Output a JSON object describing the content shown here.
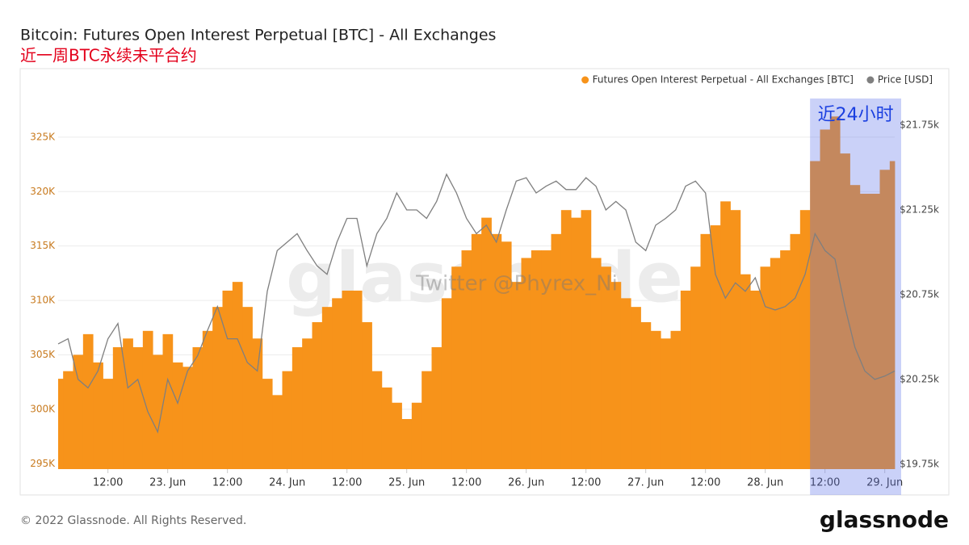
{
  "chart_data": {
    "type": "combo",
    "title": "Bitcoin: Futures Open Interest Perpetual [BTC] - All Exchanges",
    "subtitle": "近一周BTC永续未平合约",
    "x": [
      "22 Jun 02:00",
      "22 Jun 04:00",
      "22 Jun 06:00",
      "22 Jun 08:00",
      "22 Jun 10:00",
      "22 Jun 12:00",
      "22 Jun 14:00",
      "22 Jun 16:00",
      "22 Jun 18:00",
      "22 Jun 20:00",
      "22 Jun 22:00",
      "23 Jun 00:00",
      "23 Jun 02:00",
      "23 Jun 04:00",
      "23 Jun 06:00",
      "23 Jun 08:00",
      "23 Jun 10:00",
      "23 Jun 12:00",
      "23 Jun 14:00",
      "23 Jun 16:00",
      "23 Jun 18:00",
      "23 Jun 20:00",
      "23 Jun 22:00",
      "24 Jun 00:00",
      "24 Jun 02:00",
      "24 Jun 04:00",
      "24 Jun 06:00",
      "24 Jun 08:00",
      "24 Jun 10:00",
      "24 Jun 12:00",
      "24 Jun 14:00",
      "24 Jun 16:00",
      "24 Jun 18:00",
      "24 Jun 20:00",
      "24 Jun 22:00",
      "25 Jun 00:00",
      "25 Jun 02:00",
      "25 Jun 04:00",
      "25 Jun 06:00",
      "25 Jun 08:00",
      "25 Jun 10:00",
      "25 Jun 12:00",
      "25 Jun 14:00",
      "25 Jun 16:00",
      "25 Jun 18:00",
      "25 Jun 20:00",
      "25 Jun 22:00",
      "26 Jun 00:00",
      "26 Jun 02:00",
      "26 Jun 04:00",
      "26 Jun 06:00",
      "26 Jun 08:00",
      "26 Jun 10:00",
      "26 Jun 12:00",
      "26 Jun 14:00",
      "26 Jun 16:00",
      "26 Jun 18:00",
      "26 Jun 20:00",
      "26 Jun 22:00",
      "27 Jun 00:00",
      "27 Jun 02:00",
      "27 Jun 04:00",
      "27 Jun 06:00",
      "27 Jun 08:00",
      "27 Jun 10:00",
      "27 Jun 12:00",
      "27 Jun 14:00",
      "27 Jun 16:00",
      "27 Jun 18:00",
      "27 Jun 20:00",
      "27 Jun 22:00",
      "28 Jun 00:00",
      "28 Jun 02:00",
      "28 Jun 04:00",
      "28 Jun 06:00",
      "28 Jun 08:00",
      "28 Jun 10:00",
      "28 Jun 12:00",
      "28 Jun 14:00",
      "28 Jun 16:00",
      "28 Jun 18:00",
      "28 Jun 20:00",
      "28 Jun 22:00",
      "29 Jun 00:00",
      "29 Jun 02:00"
    ],
    "series": [
      {
        "name": "Futures Open Interest Perpetual - All Exchanges [BTC]",
        "type": "bar",
        "color": "#f7931a",
        "values": [
          302800,
          303500,
          305000,
          306900,
          304300,
          302800,
          305700,
          306500,
          305700,
          307200,
          305000,
          306900,
          304300,
          303900,
          305700,
          307200,
          309400,
          310900,
          311700,
          309400,
          306500,
          302800,
          301300,
          303500,
          305700,
          306500,
          308000,
          309400,
          310200,
          310900,
          310900,
          308000,
          303500,
          302000,
          300600,
          299100,
          300600,
          303500,
          305700,
          310200,
          313100,
          314600,
          316100,
          317600,
          316100,
          315400,
          311700,
          313900,
          314600,
          314600,
          316100,
          318300,
          317600,
          318300,
          313900,
          313100,
          311700,
          310200,
          309400,
          308000,
          307200,
          306500,
          307200,
          310900,
          313100,
          316100,
          316900,
          319100,
          318300,
          312400,
          310900,
          313100,
          313900,
          314600,
          316100,
          318300,
          322800,
          325700,
          326900,
          323500,
          320600,
          319800,
          319800,
          322000,
          322800
        ]
      },
      {
        "name": "Price [USD]",
        "type": "line",
        "color": "#7f7f7f",
        "axis": "y2",
        "values": [
          20460,
          20490,
          20250,
          20200,
          20300,
          20490,
          20580,
          20200,
          20250,
          20060,
          19940,
          20250,
          20110,
          20300,
          20390,
          20540,
          20680,
          20490,
          20490,
          20350,
          20300,
          20770,
          21010,
          21060,
          21110,
          21010,
          20920,
          20870,
          21060,
          21200,
          21200,
          20920,
          21110,
          21200,
          21350,
          21250,
          21250,
          21200,
          21300,
          21460,
          21350,
          21200,
          21110,
          21160,
          21060,
          21250,
          21420,
          21440,
          21350,
          21390,
          21420,
          21370,
          21370,
          21440,
          21390,
          21250,
          21300,
          21250,
          21060,
          21010,
          21160,
          21200,
          21250,
          21390,
          21420,
          21350,
          20870,
          20730,
          20820,
          20770,
          20850,
          20680,
          20660,
          20680,
          20730,
          20870,
          21110,
          21010,
          20960,
          20680,
          20440,
          20300,
          20250,
          20270,
          20300
        ]
      }
    ],
    "xlim": [
      "22 Jun 02:00",
      "29 Jun 02:00"
    ],
    "xticks": [
      {
        "value": "22 Jun 12:00",
        "label": "12:00"
      },
      {
        "value": "23 Jun 00:00",
        "label": "23. Jun"
      },
      {
        "value": "23 Jun 12:00",
        "label": "12:00"
      },
      {
        "value": "24 Jun 00:00",
        "label": "24. Jun"
      },
      {
        "value": "24 Jun 12:00",
        "label": "12:00"
      },
      {
        "value": "25 Jun 00:00",
        "label": "25. Jun"
      },
      {
        "value": "25 Jun 12:00",
        "label": "12:00"
      },
      {
        "value": "26 Jun 00:00",
        "label": "26. Jun"
      },
      {
        "value": "26 Jun 12:00",
        "label": "12:00"
      },
      {
        "value": "27 Jun 00:00",
        "label": "27. Jun"
      },
      {
        "value": "27 Jun 12:00",
        "label": "12:00"
      },
      {
        "value": "28 Jun 00:00",
        "label": "28. Jun"
      },
      {
        "value": "28 Jun 12:00",
        "label": "12:00"
      },
      {
        "value": "29 Jun 00:00",
        "label": "29. Jun"
      }
    ],
    "ylim": [
      294500,
      328700
    ],
    "yticks": [
      {
        "value": 295000,
        "label": "295K"
      },
      {
        "value": 300000,
        "label": "300K"
      },
      {
        "value": 305000,
        "label": "305K"
      },
      {
        "value": 310000,
        "label": "310K"
      },
      {
        "value": 315000,
        "label": "315K"
      },
      {
        "value": 320000,
        "label": "320K"
      },
      {
        "value": 325000,
        "label": "325K"
      }
    ],
    "y2lim": [
      19721,
      21917
    ],
    "y2ticks": [
      {
        "value": 19750,
        "label": "$19.75k"
      },
      {
        "value": 20250,
        "label": "$20.25k"
      },
      {
        "value": 20750,
        "label": "$20.75k"
      },
      {
        "value": 21250,
        "label": "$21.25k"
      },
      {
        "value": 21750,
        "label": "$21.75k"
      }
    ],
    "grid": true,
    "legend": "top-right",
    "highlight": {
      "from": "28 Jun 09:00",
      "to": "29 Jun 02:00",
      "label": "近24小时",
      "color": "rgba(95,115,235,0.33)"
    },
    "watermarks": [
      "glassnode",
      "Twitter @Phyrex_Ni"
    ],
    "copyright": "© 2022 Glassnode. All Rights Reserved.",
    "logo": "glassnode"
  }
}
